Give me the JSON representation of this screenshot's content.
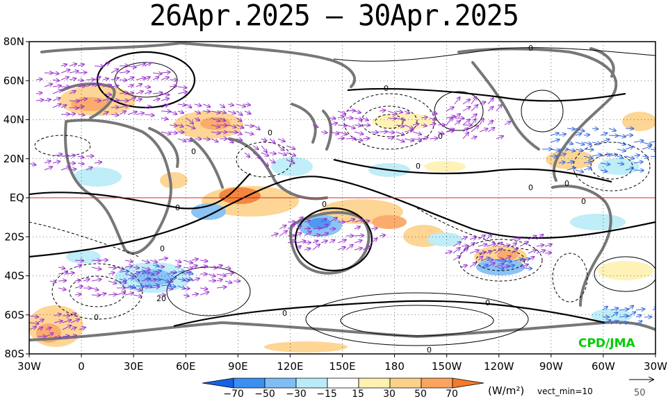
{
  "title": "26Apr.2025 – 30Apr.2025",
  "credit": "CPD/JMA",
  "credit_color": "#00cc00",
  "lat_labels": [
    "80N",
    "60N",
    "40N",
    "20N",
    "EQ",
    "20S",
    "40S",
    "60S",
    "80S"
  ],
  "lon_labels": [
    "30W",
    "0",
    "30E",
    "60E",
    "90E",
    "120E",
    "150E",
    "180",
    "150W",
    "120W",
    "90W",
    "60W",
    "30W"
  ],
  "colorbar": {
    "ticks": [
      "−70",
      "−50",
      "−30",
      "−15",
      "15",
      "30",
      "50",
      "70"
    ],
    "colors": [
      "#1763e6",
      "#3a8ff0",
      "#7fbdf5",
      "#b9ecf8",
      "#ffffff",
      "#fff1b0",
      "#fdd18a",
      "#fba45e",
      "#f57a2a"
    ],
    "unit": "(W/m²)",
    "vect_note": "vect_min=10"
  },
  "ref_vector": "50",
  "contour_labels": [
    "0",
    "20"
  ],
  "colors": {
    "equator": "#e02020",
    "land": "#777777",
    "vectors_main": "#9933cc",
    "vectors_alt": "#3366dd"
  }
}
